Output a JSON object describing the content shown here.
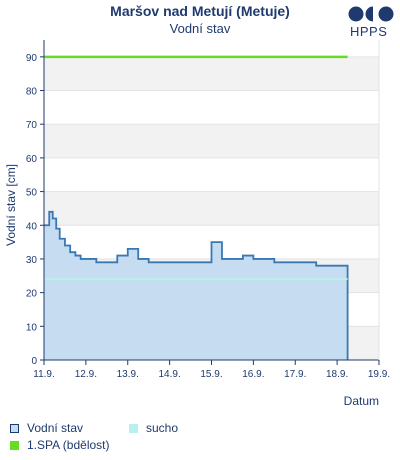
{
  "header": {
    "title": "Maršov nad Metují (Metuje)",
    "subtitle": "Vodní stav",
    "logo_text": "HPPS"
  },
  "chart_data": {
    "type": "area",
    "xlabel": "Datum",
    "ylabel": "Vodní stav [cm]",
    "x_range": [
      "2024-09-11",
      "2024-09-19"
    ],
    "x_ticks": [
      "11.9.",
      "12.9.",
      "13.9.",
      "14.9.",
      "15.9.",
      "16.9.",
      "17.9.",
      "18.9.",
      "19.9."
    ],
    "ylim": [
      0,
      95
    ],
    "y_ticks": [
      0,
      10,
      20,
      30,
      40,
      50,
      60,
      70,
      80,
      90
    ],
    "grid": true,
    "series": [
      {
        "name": "Vodní stav",
        "color": "#3a78b4",
        "fill": "#c6dcf0",
        "x": [
          "11.9. 00:00",
          "11.9. 03:00",
          "11.9. 05:00",
          "11.9. 07:00",
          "11.9. 09:00",
          "11.9. 12:00",
          "11.9. 15:00",
          "11.9. 18:00",
          "11.9. 21:00",
          "12.9. 00:00",
          "12.9. 06:00",
          "12.9. 12:00",
          "12.9. 18:00",
          "13.9. 00:00",
          "13.9. 06:00",
          "13.9. 12:00",
          "13.9. 18:00",
          "14.9. 00:00",
          "14.9. 06:00",
          "14.9. 12:00",
          "14.9. 18:00",
          "15.9. 00:00",
          "15.9. 06:00",
          "15.9. 12:00",
          "15.9. 18:00",
          "16.9. 00:00",
          "16.9. 12:00",
          "17.9. 00:00",
          "17.9. 06:00",
          "17.9. 12:00",
          "18.9. 00:00",
          "18.9. 06:00"
        ],
        "values": [
          40,
          44,
          42,
          39,
          36,
          34,
          32,
          31,
          30,
          30,
          29,
          29,
          31,
          33,
          30,
          29,
          29,
          29,
          29,
          29,
          29,
          35,
          30,
          30,
          31,
          30,
          29,
          29,
          29,
          28,
          28,
          28
        ]
      },
      {
        "name": "sucho",
        "color": "#b8f0f0",
        "values": [
          24,
          24
        ]
      },
      {
        "name": "1.SPA (bdělost)",
        "color": "#66dd22",
        "values": [
          90,
          90
        ]
      }
    ],
    "legend_position": "bottom-left"
  }
}
